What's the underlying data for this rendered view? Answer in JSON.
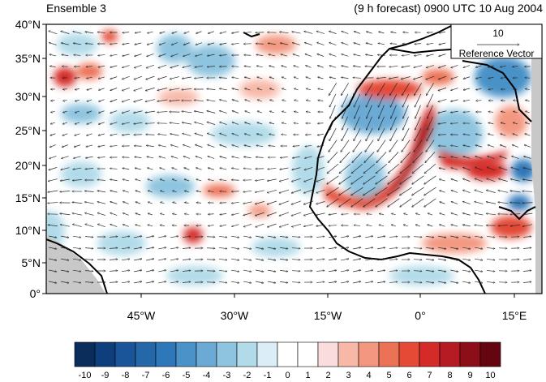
{
  "title_left": "Ensemble 3",
  "title_right": "(9 h forecast) 0900 UTC 10 Aug 2004",
  "reference_vector": {
    "magnitude": "10",
    "label": "Reference Vector"
  },
  "lat_labels": [
    "40°N",
    "35°N",
    "30°N",
    "25°N",
    "20°N",
    "15°N",
    "10°N",
    "5°N",
    "0°"
  ],
  "lon_labels": [
    "45°W",
    "30°W",
    "15°W",
    "0°",
    "15°E"
  ],
  "colorbar": {
    "labels": [
      "-10",
      "-9",
      "-8",
      "-7",
      "-6",
      "-5",
      "-4",
      "-3",
      "-2",
      "-1",
      "0",
      "1",
      "2",
      "3",
      "4",
      "5",
      "6",
      "7",
      "8",
      "9",
      "10"
    ],
    "colors": [
      "#0a2d5c",
      "#0e3f7c",
      "#1a5599",
      "#2468aa",
      "#2e77b8",
      "#4a92c8",
      "#6aaad4",
      "#8ec4df",
      "#b2dbe9",
      "#dbeef7",
      "#ffffff",
      "#ffffff",
      "#fbdcdc",
      "#f7b8a8",
      "#f39780",
      "#ec7256",
      "#e44a36",
      "#d42a28",
      "#b51b22",
      "#8c0e18",
      "#650510"
    ]
  },
  "colors": {
    "coast": "#000000",
    "land_mask": "#c8c8c8",
    "vector": "#2a2a2a"
  }
}
